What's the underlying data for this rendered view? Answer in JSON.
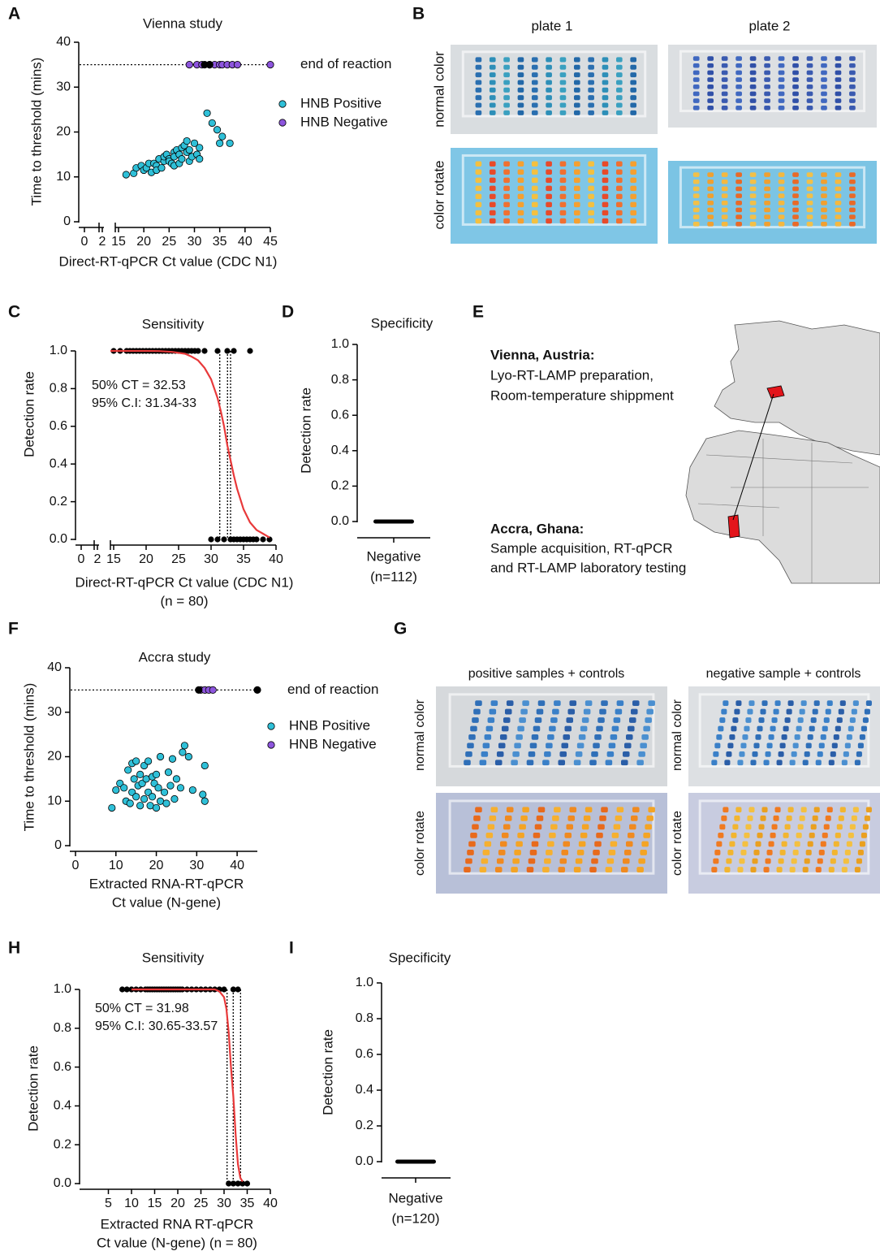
{
  "panel_labels": [
    "A",
    "B",
    "C",
    "D",
    "E",
    "F",
    "G",
    "H",
    "I"
  ],
  "chart_data": [
    {
      "type": "scatter",
      "title": "Vienna study",
      "xlabel": "Direct-RT-qPCR Ct value (CDC N1)",
      "ylabel": "Time to threshold (mins)",
      "xlim": [
        0,
        45
      ],
      "x_break": [
        2,
        15
      ],
      "xticks": [
        0,
        2,
        15,
        20,
        25,
        30,
        35,
        40,
        45
      ],
      "ylim": [
        0,
        40
      ],
      "yticks": [
        0,
        10,
        20,
        30,
        40
      ],
      "reference_line": {
        "value": 35,
        "label": "end of reaction"
      },
      "series": [
        {
          "name": "HNB Positive",
          "color": "#2fc0d8",
          "x": [
            16.5,
            18,
            18.5,
            19.5,
            20,
            20.5,
            21,
            21.5,
            22,
            22.5,
            22.5,
            23,
            23.5,
            24,
            24,
            24.5,
            25,
            25,
            25.5,
            26,
            26,
            26,
            26.5,
            27,
            27,
            27.5,
            27.5,
            28,
            28.5,
            28.5,
            29,
            29,
            29.5,
            30,
            30.5,
            31,
            31,
            32.5,
            33.5,
            34.5,
            35,
            35.5,
            37
          ],
          "values": [
            10.5,
            10.8,
            12,
            12.5,
            11.5,
            12,
            13,
            11,
            13,
            12.5,
            11.5,
            14,
            12,
            13.5,
            14.5,
            15,
            14,
            13.5,
            13,
            15.5,
            14.5,
            12.5,
            16,
            15,
            13,
            16.5,
            14,
            17,
            15.5,
            18,
            16,
            13.5,
            14.5,
            17.5,
            15,
            16.5,
            14,
            24.2,
            22,
            20.5,
            17.5,
            19,
            17.5
          ]
        },
        {
          "name": "HNB Negative",
          "color": "#8d55dd",
          "x": [
            29,
            30.5,
            31.5,
            33,
            34,
            35,
            35.5,
            36.5,
            37.5,
            38.5,
            45
          ],
          "values": [
            35,
            35,
            35,
            35,
            35,
            35,
            35,
            35,
            35,
            35,
            35
          ]
        },
        {
          "color": "#000000",
          "x": [
            32,
            33
          ],
          "values": [
            35,
            35
          ]
        }
      ]
    },
    {
      "type": "dose_response",
      "title": "Sensitivity",
      "xlabel": "Direct-RT-qPCR Ct value (CDC N1)",
      "xlabel_line2": "(n = 80)",
      "ylabel": "Detection rate",
      "xlim": [
        0,
        40
      ],
      "x_break": [
        2,
        15
      ],
      "xticks": [
        0,
        2,
        15,
        20,
        25,
        30,
        35,
        40
      ],
      "ylim": [
        0,
        1
      ],
      "yticks": [
        {
          "value": 0,
          "label": "0.0"
        },
        {
          "value": 0.2,
          "label": "0.2"
        },
        {
          "value": 0.4,
          "label": "0.4"
        },
        {
          "value": 0.6,
          "label": "0.6"
        },
        {
          "value": 0.8,
          "label": "0.8"
        },
        {
          "value": 1,
          "label": "1.0"
        }
      ],
      "annotations": [
        "50% CT = 32.53",
        "95% C.I: 31.34-33"
      ],
      "ci_lines": [
        31.34,
        32.53,
        33
      ],
      "points": {
        "color": "#000000",
        "x": [
          15,
          16,
          17,
          17.5,
          18,
          18.5,
          19,
          19.5,
          20,
          20.5,
          21,
          21.5,
          22,
          22.5,
          23,
          23.5,
          24,
          24.5,
          25,
          25.5,
          26,
          26.5,
          27,
          27.5,
          28,
          29,
          31,
          32.5,
          33.5,
          36,
          30,
          31,
          32,
          33,
          33.5,
          34,
          34.5,
          35,
          35.5,
          36,
          36.5,
          37,
          38,
          39
        ],
        "values": [
          1,
          1,
          1,
          1,
          1,
          1,
          1,
          1,
          1,
          1,
          1,
          1,
          1,
          1,
          1,
          1,
          1,
          1,
          1,
          1,
          1,
          1,
          1,
          1,
          1,
          1,
          1,
          1,
          1,
          1,
          0,
          0,
          0,
          0,
          0,
          0,
          0,
          0,
          0,
          0,
          0,
          0,
          0,
          0
        ]
      },
      "fit": {
        "color": "#e8393a",
        "x": [
          14.5,
          16,
          18,
          20,
          22,
          24,
          26,
          27,
          28,
          29,
          30,
          31,
          31.5,
          32,
          32.5,
          33,
          33.5,
          34,
          35,
          36,
          37,
          38,
          39
        ],
        "values": [
          1,
          1,
          1,
          1,
          0.999,
          0.995,
          0.985,
          0.97,
          0.95,
          0.91,
          0.85,
          0.75,
          0.68,
          0.6,
          0.5,
          0.42,
          0.34,
          0.27,
          0.16,
          0.09,
          0.05,
          0.03,
          0.01
        ]
      }
    },
    {
      "type": "strip",
      "title": "Specificity",
      "ylabel": "Detection rate",
      "ylim": [
        0,
        1
      ],
      "yticks": [
        {
          "value": 0,
          "label": "0.0"
        },
        {
          "value": 0.2,
          "label": "0.2"
        },
        {
          "value": 0.4,
          "label": "0.4"
        },
        {
          "value": 0.6,
          "label": "0.6"
        },
        {
          "value": 0.8,
          "label": "0.8"
        },
        {
          "value": 1,
          "label": "1.0"
        }
      ],
      "categories": [
        "Negative"
      ],
      "n_labels": [
        "(n=112)"
      ],
      "values": [
        0
      ],
      "color": "#000000"
    },
    {
      "type": "scatter",
      "title": "Accra study",
      "xlabel": "Extracted RNA-RT-qPCR",
      "xlabel_line2": "Ct value (N-gene)",
      "ylabel": "Time to threshold (mins)",
      "xlim": [
        0,
        45
      ],
      "xticks": [
        0,
        10,
        20,
        30,
        40
      ],
      "ylim": [
        0,
        40
      ],
      "yticks": [
        0,
        10,
        20,
        30,
        40
      ],
      "reference_line": {
        "value": 35,
        "label": "end of reaction"
      },
      "series": [
        {
          "name": "HNB Positive",
          "color": "#2fc0d8",
          "x": [
            9,
            10,
            11,
            12,
            12.5,
            13,
            13.5,
            14,
            14,
            14.5,
            15,
            15,
            15.5,
            16,
            16,
            16.5,
            17,
            17,
            17.5,
            18,
            18,
            18.5,
            19,
            19,
            19.5,
            20,
            20,
            20.5,
            21,
            21,
            22,
            22.5,
            23,
            23.5,
            24,
            24.5,
            25,
            26,
            26.5,
            27,
            28,
            29,
            31.5,
            32,
            32
          ],
          "values": [
            8.5,
            12.5,
            14,
            13,
            10,
            17,
            9.5,
            12,
            18.5,
            15,
            11,
            19,
            13.5,
            9,
            16,
            14,
            10.5,
            18,
            15,
            12,
            19,
            9,
            15.5,
            11,
            14,
            8.5,
            16,
            13,
            10,
            20,
            12,
            9.5,
            16.5,
            13.5,
            19.5,
            10.5,
            15,
            13,
            21,
            22.5,
            20,
            12.5,
            11.5,
            18,
            10
          ]
        },
        {
          "name": "HNB Negative",
          "color": "#8d55dd",
          "x": [
            31,
            32,
            33,
            34
          ],
          "values": [
            35,
            35,
            35,
            35
          ]
        },
        {
          "color": "#000000",
          "x": [
            30.5,
            45
          ],
          "values": [
            35,
            35
          ]
        }
      ]
    },
    {
      "type": "dose_response",
      "title": "Sensitivity",
      "xlabel": "Extracted RNA RT-qPCR",
      "xlabel_line2": "Ct value (N-gene) (n = 80)",
      "ylabel": "Detection rate",
      "xlim": [
        0,
        40
      ],
      "xticks": [
        5,
        10,
        15,
        20,
        25,
        30,
        35,
        40
      ],
      "ylim": [
        0,
        1
      ],
      "yticks": [
        {
          "value": 0,
          "label": "0.0"
        },
        {
          "value": 0.2,
          "label": "0.2"
        },
        {
          "value": 0.4,
          "label": "0.4"
        },
        {
          "value": 0.6,
          "label": "0.6"
        },
        {
          "value": 0.8,
          "label": "0.8"
        },
        {
          "value": 1,
          "label": "1.0"
        }
      ],
      "annotations": [
        "50% CT = 31.98",
        "95% C.I: 30.65-33.57"
      ],
      "ci_lines": [
        30.65,
        31.98,
        33.57
      ],
      "points": {
        "color": "#000000",
        "x": [
          8,
          9,
          10,
          11,
          12,
          13,
          13.5,
          14,
          14.5,
          15,
          15.5,
          16,
          16.5,
          17,
          17.5,
          18,
          18.5,
          19,
          19.5,
          20,
          20.5,
          21,
          22,
          23,
          24,
          25,
          26,
          27,
          28,
          29,
          30,
          32,
          33,
          31,
          32,
          33,
          34,
          35
        ],
        "values": [
          1,
          1,
          1,
          1,
          1,
          1,
          1,
          1,
          1,
          1,
          1,
          1,
          1,
          1,
          1,
          1,
          1,
          1,
          1,
          1,
          1,
          1,
          1,
          1,
          1,
          1,
          1,
          1,
          1,
          1,
          1,
          1,
          1,
          0,
          0,
          0,
          0,
          0
        ]
      },
      "fit": {
        "color": "#e8393a",
        "x": [
          10,
          15,
          20,
          25,
          28,
          29,
          30,
          30.5,
          31,
          31.5,
          32,
          32.5,
          33,
          33.5,
          34
        ],
        "values": [
          1,
          1,
          1,
          1,
          1,
          0.99,
          0.96,
          0.9,
          0.78,
          0.6,
          0.45,
          0.25,
          0.1,
          0.03,
          0.01
        ]
      }
    },
    {
      "type": "strip",
      "title": "Specificity",
      "ylabel": "Detection rate",
      "ylim": [
        0,
        1
      ],
      "yticks": [
        {
          "value": 0,
          "label": "0.0"
        },
        {
          "value": 0.2,
          "label": "0.2"
        },
        {
          "value": 0.4,
          "label": "0.4"
        },
        {
          "value": 0.6,
          "label": "0.6"
        },
        {
          "value": 0.8,
          "label": "0.8"
        },
        {
          "value": 1,
          "label": "1.0"
        }
      ],
      "categories": [
        "Negative"
      ],
      "n_labels": [
        "(n=120)"
      ],
      "values": [
        0
      ],
      "color": "#000000"
    }
  ],
  "plates_b": {
    "columns": [
      "plate 1",
      "plate 2"
    ],
    "rows": [
      "normal color",
      "color rotate"
    ]
  },
  "map_e": {
    "locations": [
      {
        "name": "Vienna, Austria:",
        "lines": [
          "Lyo-RT-LAMP preparation,",
          "Room-temperature shippment"
        ]
      },
      {
        "name": "Accra, Ghana:",
        "lines": [
          "Sample acquisition, RT-qPCR",
          "and RT-LAMP laboratory testing"
        ]
      }
    ]
  },
  "plates_g": {
    "columns": [
      "positive samples + controls",
      "negative sample + controls"
    ],
    "rows": [
      "normal color",
      "color rotate"
    ]
  }
}
